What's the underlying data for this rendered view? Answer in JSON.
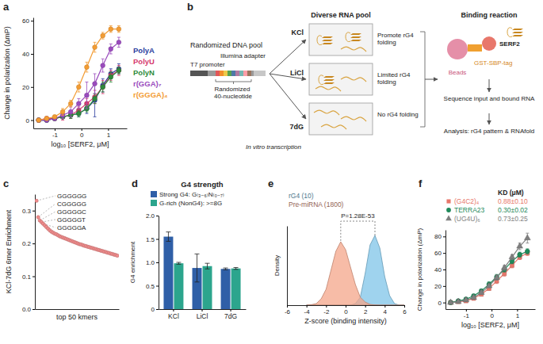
{
  "chart_data": [
    {
      "label": "a",
      "type": "line",
      "x_label": "log₁₀ [SERF2, μM]",
      "y_label": "Change in polarization (ΔmP)",
      "x": [
        -1.6,
        -1.3,
        -1.0,
        -0.7,
        -0.4,
        -0.1,
        0.2,
        0.5,
        0.8,
        1.1,
        1.4
      ],
      "xlim": [
        -1.8,
        1.7
      ],
      "xticks": [
        -1,
        0,
        1
      ],
      "ylim": [
        -5,
        62
      ],
      "yticks": [
        0,
        20,
        40,
        60
      ],
      "legend": "right",
      "series": [
        {
          "name": "PolyA",
          "color": "#2c3e9e",
          "marker": "circle",
          "values": [
            0,
            0,
            1,
            2,
            3,
            4,
            7,
            12,
            21,
            28,
            31
          ],
          "errors": [
            1,
            1,
            1,
            1,
            2,
            2,
            3,
            10,
            4,
            3,
            3
          ]
        },
        {
          "name": "PolyU",
          "color": "#d63a6e",
          "marker": "circle",
          "values": [
            0,
            1,
            1,
            2,
            3,
            6,
            10,
            14,
            20,
            27,
            30
          ],
          "errors": [
            1,
            1,
            1,
            2,
            2,
            2,
            3,
            4,
            4,
            3,
            3
          ]
        },
        {
          "name": "PolyN",
          "color": "#2e8b3a",
          "marker": "circle",
          "values": [
            0,
            0,
            1,
            2,
            3,
            4,
            7,
            13,
            20,
            26,
            30
          ],
          "errors": [
            1,
            1,
            1,
            1,
            2,
            2,
            2,
            3,
            3,
            3,
            2
          ]
        },
        {
          "name": "r(GGA)₇",
          "color": "#9a4bbd",
          "marker": "circle",
          "values": [
            0,
            0,
            1,
            3,
            5,
            10,
            15,
            22,
            33,
            43,
            47
          ],
          "errors": [
            1,
            1,
            1,
            2,
            3,
            3,
            8,
            6,
            4,
            3,
            3
          ]
        },
        {
          "name": "r(GGGA)₄",
          "color": "#f39c33",
          "marker": "circle",
          "values": [
            0,
            1,
            2,
            5,
            10,
            20,
            32,
            44,
            51,
            55,
            55
          ],
          "errors": [
            1,
            1,
            1,
            2,
            2,
            3,
            3,
            3,
            2,
            2,
            2
          ]
        }
      ]
    },
    {
      "label": "c",
      "type": "scatter",
      "x_label": "top 50 kmers",
      "y_label": "KCl-7dG 6mer Enrichment",
      "x": [
        1,
        2,
        3,
        4,
        5,
        6,
        7,
        8,
        9,
        10,
        11,
        12,
        13,
        14,
        15,
        16,
        17,
        18,
        19,
        20,
        21,
        22,
        23,
        24,
        25,
        26,
        27,
        28,
        29,
        30,
        31,
        32,
        33,
        34,
        35,
        36,
        37,
        38,
        39,
        40,
        41,
        42,
        43,
        44,
        45,
        46,
        47,
        48,
        49,
        50
      ],
      "values": [
        0.33,
        0.28,
        0.27,
        0.265,
        0.26,
        0.255,
        0.25,
        0.245,
        0.24,
        0.236,
        0.233,
        0.23,
        0.228,
        0.225,
        0.222,
        0.22,
        0.218,
        0.216,
        0.214,
        0.212,
        0.21,
        0.208,
        0.206,
        0.204,
        0.202,
        0.2,
        0.198,
        0.197,
        0.195,
        0.193,
        0.192,
        0.19,
        0.189,
        0.187,
        0.186,
        0.184,
        0.183,
        0.181,
        0.18,
        0.178,
        0.177,
        0.175,
        0.174,
        0.172,
        0.171,
        0.169,
        0.168,
        0.166,
        0.165,
        0.163
      ],
      "xlim": [
        0,
        51
      ],
      "ylim": [
        0,
        0.35
      ],
      "yticks": [
        {
          "value": 0,
          "label": "0.0"
        },
        0.1,
        0.2,
        0.3
      ],
      "tick_labels": "y",
      "color": "#f08c8c",
      "annotations": [
        "GGGGGG",
        "CGGGGG",
        "GGGGGC",
        "GGGGGT",
        "GGGGGA"
      ]
    },
    {
      "label": "d",
      "type": "bar",
      "title": "G4 strength",
      "y_label": "G4 enrichment",
      "categories": [
        "KCl",
        "LiCl",
        "7dG"
      ],
      "ylim": [
        0,
        2
      ],
      "yticks": [
        0,
        0.5,
        {
          "value": 1,
          "label": "1.0"
        },
        1.5,
        {
          "value": 2,
          "label": "2.0"
        }
      ],
      "legend": "top",
      "series": [
        {
          "name": "Strong G4: G₍₃₋₆₎N₍₀₋₇₎",
          "color": "#2f5fa7",
          "values": [
            1.55,
            0.88,
            0.86
          ],
          "errors": [
            0.1,
            0.3,
            0.02
          ]
        },
        {
          "name": "G-rich (NonG4): >=8G",
          "color": "#2ca58d",
          "values": [
            0.98,
            0.92,
            0.87
          ],
          "errors": [
            0.02,
            0.06,
            0.02
          ]
        }
      ]
    },
    {
      "label": "e",
      "type": "area",
      "x_label": "Z-score (binding intensity)",
      "y_label": "Density",
      "x": [
        -4,
        -3.5,
        -3,
        -2.5,
        -2,
        -1.5,
        -1,
        -0.5,
        0,
        0.5,
        1,
        1.5,
        2,
        2.5,
        3,
        3.5,
        4,
        4.5,
        5,
        5.5,
        6
      ],
      "xlim": [
        -6,
        6
      ],
      "xticks": [
        -6,
        -4,
        -2,
        0,
        2,
        4,
        6
      ],
      "ylim": [
        0,
        0.5
      ],
      "tick_labels": "x",
      "legend": "upper left",
      "annotations": [
        "P=1.28E-53"
      ],
      "series": [
        {
          "name": "rG4 (10)",
          "color": "#7fc4e8",
          "values": [
            0,
            0,
            0,
            0,
            0,
            0,
            0,
            0,
            0,
            0,
            0.01,
            0.05,
            0.2,
            0.38,
            0.44,
            0.36,
            0.18,
            0.06,
            0.01,
            0,
            0
          ]
        },
        {
          "name": "Pre-miRNA (1800)",
          "color": "#f4a58a",
          "values": [
            0,
            0.003,
            0.01,
            0.04,
            0.1,
            0.22,
            0.34,
            0.4,
            0.35,
            0.24,
            0.13,
            0.05,
            0.02,
            0.005,
            0.001,
            0,
            0,
            0,
            0,
            0,
            0
          ]
        }
      ]
    },
    {
      "label": "f",
      "type": "line",
      "x_label": "log₁₀ [SERF2, μM]",
      "y_label": "Change in polarization (ΔmP)",
      "x": [
        -1.6,
        -1.3,
        -1.0,
        -0.7,
        -0.4,
        -0.1,
        0.2,
        0.5,
        0.8,
        1.1,
        1.4
      ],
      "xlim": [
        -1.8,
        1.7
      ],
      "xticks": [
        -1,
        0,
        1
      ],
      "ylim": [
        -8,
        88
      ],
      "yticks": [
        0,
        20,
        40,
        60,
        80
      ],
      "legend": "top",
      "legend_title": "KD (μM)",
      "series": [
        {
          "name": "(G4C2)₄",
          "color": "#e8776b",
          "marker": "square",
          "kd": "0.88±0.10",
          "values": [
            0,
            1,
            2,
            5,
            10,
            17,
            26,
            35,
            45,
            55,
            60
          ],
          "errors": [
            1,
            1,
            1,
            2,
            2,
            2,
            3,
            3,
            3,
            3,
            3
          ]
        },
        {
          "name": "TERRA23",
          "color": "#1f8a5b",
          "marker": "circle",
          "kd": "0.30±0.02",
          "values": [
            0,
            2,
            4,
            8,
            14,
            22,
            31,
            40,
            50,
            58,
            62
          ],
          "errors": [
            1,
            1,
            2,
            2,
            2,
            3,
            3,
            3,
            3,
            3,
            3
          ]
        },
        {
          "name": "(UG4U)₆",
          "color": "#7f7f7f",
          "marker": "triangle",
          "kd": "0.73±0.25",
          "values": [
            0,
            1,
            3,
            6,
            12,
            20,
            30,
            42,
            55,
            68,
            78
          ],
          "errors": [
            1,
            1,
            1,
            2,
            2,
            2,
            3,
            3,
            3,
            4,
            6
          ]
        }
      ]
    }
  ],
  "diagram": {
    "label": "b",
    "dna_pool": "Randomized DNA pool",
    "t7": "T7 promoter",
    "adapter": "Illumina adapter",
    "random": "Randomized 40-nucleotide",
    "transcription": "In vitro transcription",
    "rna_pool": "Diverse RNA pool",
    "conditions": [
      {
        "salt": "KCl",
        "effect": "Promote rG4 folding"
      },
      {
        "salt": "LiCl",
        "effect": "Limited rG4 folding"
      },
      {
        "salt": "7dG",
        "effect": "No rG4 folding"
      }
    ],
    "binding": "Binding reaction",
    "protein": "SERF2",
    "tag": "GST-SBP-tag",
    "beads": "Beads",
    "sequencing": "Sequence input and bound RNA",
    "analysis": "Analysis: rG4 pattern & RNAfold"
  }
}
